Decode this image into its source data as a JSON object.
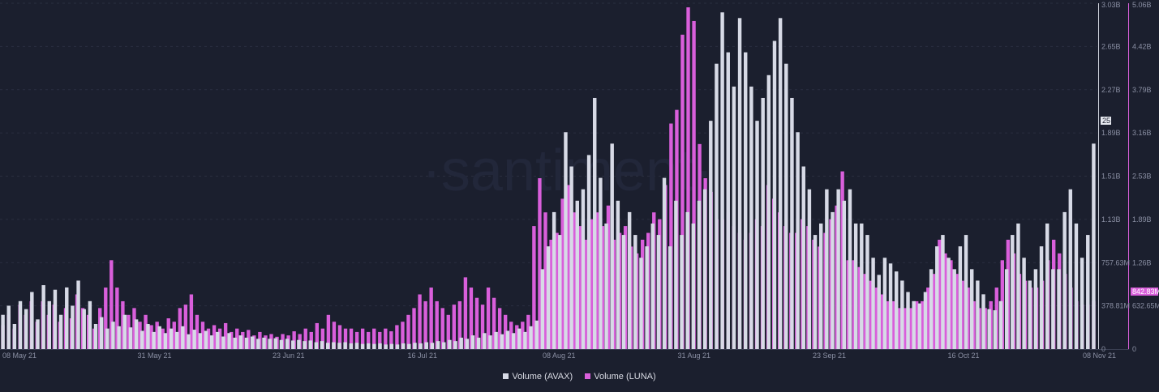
{
  "app": {
    "watermark": "·santiment·"
  },
  "colors": {
    "background": "#1b1f2e",
    "avax": "#d7dae6",
    "luna": "#d95fdb",
    "grid": "#2a2f40",
    "axis_text": "#8a8fa3"
  },
  "chart_data": {
    "type": "bar",
    "title": "",
    "x_ticks": [
      "08 May 21",
      "31 May 21",
      "23 Jun 21",
      "16 Jul 21",
      "08 Aug 21",
      "31 Aug 21",
      "23 Sep 21",
      "16 Oct 21",
      "08 Nov 21"
    ],
    "x_range": [
      "2021-05-08",
      "2021-11-08"
    ],
    "y_left_ticks": [
      "0",
      "378.81M",
      "757.63M",
      "1.13B",
      "1.51B",
      "1.89B",
      "2.27B",
      "2.65B",
      "3.03B"
    ],
    "y_right_ticks": [
      "0",
      "632.65M",
      "1.26B",
      "1.89B",
      "2.53B",
      "3.16B",
      "3.79B",
      "4.42B",
      "5.06B"
    ],
    "y_left_range": [
      0,
      3030000000
    ],
    "y_right_range": [
      0,
      5060000000
    ],
    "grid": true,
    "legend_position": "bottom-center",
    "current_value_badge": "842.83M",
    "marker_badge": "25",
    "series": [
      {
        "name": "Volume (AVAX)",
        "axis": "left",
        "color": "#d7dae6",
        "values_millions": [
          300,
          380,
          220,
          420,
          350,
          500,
          260,
          560,
          420,
          520,
          300,
          540,
          380,
          600,
          350,
          420,
          220,
          280,
          180,
          240,
          200,
          300,
          190,
          260,
          160,
          220,
          150,
          200,
          140,
          180,
          150,
          200,
          130,
          170,
          140,
          160,
          120,
          150,
          110,
          140,
          100,
          120,
          100,
          110,
          90,
          100,
          90,
          95,
          80,
          90,
          75,
          80,
          70,
          75,
          60,
          70,
          55,
          60,
          55,
          60,
          50,
          55,
          45,
          50,
          45,
          50,
          40,
          45,
          40,
          50,
          45,
          55,
          50,
          60,
          55,
          70,
          60,
          80,
          70,
          100,
          90,
          120,
          100,
          140,
          120,
          150,
          130,
          160,
          140,
          180,
          150,
          200,
          250,
          700,
          900,
          1200,
          1000,
          1900,
          1600,
          1300,
          1400,
          1700,
          2200,
          1500,
          1100,
          1800,
          1300,
          1000,
          1200,
          1000,
          800,
          900,
          1100,
          1000,
          1500,
          900,
          1300,
          1000,
          1200,
          1100,
          1300,
          1400,
          2000,
          2500,
          2950,
          2600,
          2300,
          2900,
          2600,
          2300,
          2000,
          2200,
          2400,
          2700,
          2900,
          2500,
          2200,
          1900,
          1600,
          1400,
          1000,
          1100,
          1400,
          1200,
          1400,
          1300,
          1400,
          1100,
          1100,
          1000,
          800,
          650,
          800,
          750,
          680,
          600,
          500,
          420,
          400,
          500,
          700,
          900,
          1000,
          800,
          700,
          900,
          1000,
          700,
          600,
          480,
          350,
          340,
          420,
          700,
          1000,
          1100,
          800,
          600,
          700,
          900,
          1100,
          700,
          700,
          1200,
          1400,
          1100,
          800,
          1000,
          1800
        ]
      },
      {
        "name": "Volume (LUNA)",
        "axis": "right",
        "color": "#d95fdb",
        "values_millions": [
          350,
          500,
          300,
          650,
          500,
          700,
          400,
          700,
          500,
          650,
          400,
          600,
          450,
          800,
          600,
          500,
          300,
          600,
          900,
          1300,
          900,
          700,
          500,
          600,
          400,
          500,
          350,
          400,
          300,
          450,
          400,
          600,
          650,
          800,
          500,
          400,
          300,
          350,
          300,
          380,
          250,
          300,
          250,
          280,
          200,
          250,
          200,
          220,
          180,
          220,
          200,
          260,
          220,
          300,
          250,
          380,
          300,
          500,
          400,
          350,
          300,
          300,
          250,
          300,
          250,
          300,
          250,
          300,
          260,
          350,
          400,
          500,
          600,
          800,
          700,
          900,
          700,
          600,
          500,
          650,
          700,
          1050,
          900,
          750,
          650,
          900,
          750,
          600,
          500,
          400,
          350,
          400,
          500,
          1800,
          2500,
          2000,
          1600,
          1700,
          2200,
          2400,
          2000,
          1800,
          1600,
          1900,
          2000,
          1800,
          2100,
          1600,
          1700,
          1800,
          1500,
          1400,
          1600,
          1700,
          2000,
          1900,
          2400,
          3300,
          3500,
          4600,
          5000,
          4800,
          3000,
          2500,
          2300,
          1900,
          1900,
          2000,
          1800,
          1700,
          1600,
          1700,
          1900,
          1800,
          2400,
          2200,
          2000,
          1800,
          1700,
          1700,
          1900,
          1800,
          1600,
          1500,
          1700,
          1900,
          2100,
          2600,
          1300,
          1300,
          1200,
          1100,
          1000,
          900,
          800,
          700,
          700,
          600,
          600,
          600,
          700,
          700,
          900,
          1100,
          1600,
          1400,
          1300,
          1100,
          1000,
          900,
          700,
          600,
          600,
          700,
          900,
          1300,
          1600,
          1400,
          1100,
          1000,
          900,
          900,
          1000,
          1300,
          1600,
          1400,
          1100,
          900,
          700,
          650,
          650,
          700
        ]
      }
    ]
  },
  "legend": [
    {
      "label": "Volume (AVAX)",
      "color": "#d7dae6"
    },
    {
      "label": "Volume (LUNA)",
      "color": "#d95fdb"
    }
  ]
}
